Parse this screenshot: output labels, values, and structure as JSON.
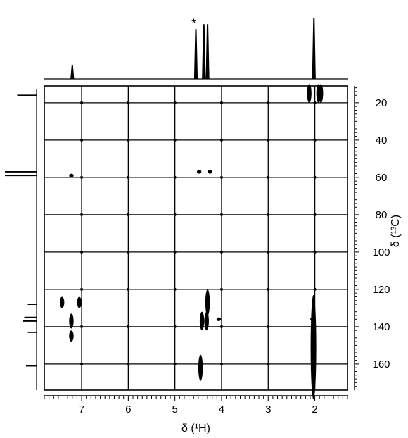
{
  "chart_data": {
    "type": "scatter",
    "description_type": "2D NMR correlation map (1H vs 13C)",
    "xlabel": "δ (¹H)",
    "ylabel": "δ (¹³C)",
    "xlim": [
      7.8,
      1.3
    ],
    "ylim": [
      11,
      174
    ],
    "x_ticks": [
      2,
      3,
      4,
      5,
      6,
      7
    ],
    "y_ticks": [
      20,
      40,
      60,
      80,
      100,
      120,
      140,
      160
    ],
    "grid": true,
    "x_projection": {
      "peaks": [
        {
          "x": 7.2,
          "h": 0.22
        },
        {
          "x": 4.55,
          "h": 0.82,
          "label": "*"
        },
        {
          "x": 4.38,
          "h": 0.9
        },
        {
          "x": 4.3,
          "h": 0.9
        },
        {
          "x": 2.02,
          "h": 1.0
        }
      ]
    },
    "y_projection": {
      "peaks": [
        {
          "y": 16,
          "w": 0.55
        },
        {
          "y": 57,
          "w": 0.9
        },
        {
          "y": 59,
          "w": 0.9
        },
        {
          "y": 128,
          "w": 0.25
        },
        {
          "y": 135,
          "w": 0.35
        },
        {
          "y": 137,
          "w": 0.4
        },
        {
          "y": 143,
          "w": 0.25
        },
        {
          "y": 161,
          "w": 0.3
        }
      ]
    },
    "cross_peaks": [
      {
        "x": 2.12,
        "y": 15,
        "dy": 5
      },
      {
        "x": 1.92,
        "y": 15,
        "dy": 5
      },
      {
        "x": 1.87,
        "y": 15,
        "dy": 5
      },
      {
        "x": 4.48,
        "y": 57,
        "dy": 1
      },
      {
        "x": 4.25,
        "y": 57,
        "dy": 1
      },
      {
        "x": 7.22,
        "y": 59,
        "dy": 1
      },
      {
        "x": 7.42,
        "y": 127,
        "dy": 3
      },
      {
        "x": 7.05,
        "y": 127,
        "dy": 3
      },
      {
        "x": 4.3,
        "y": 127,
        "dy": 7
      },
      {
        "x": 7.22,
        "y": 137,
        "dy": 4
      },
      {
        "x": 4.42,
        "y": 137,
        "dy": 5
      },
      {
        "x": 4.32,
        "y": 137,
        "dy": 5
      },
      {
        "x": 4.06,
        "y": 136,
        "dy": 1
      },
      {
        "x": 7.22,
        "y": 145,
        "dy": 3
      },
      {
        "x": 2.05,
        "y": 136,
        "dy": 1
      },
      {
        "x": 2.03,
        "y": 151,
        "dy": 28
      },
      {
        "x": 4.45,
        "y": 162,
        "dy": 7
      }
    ]
  }
}
